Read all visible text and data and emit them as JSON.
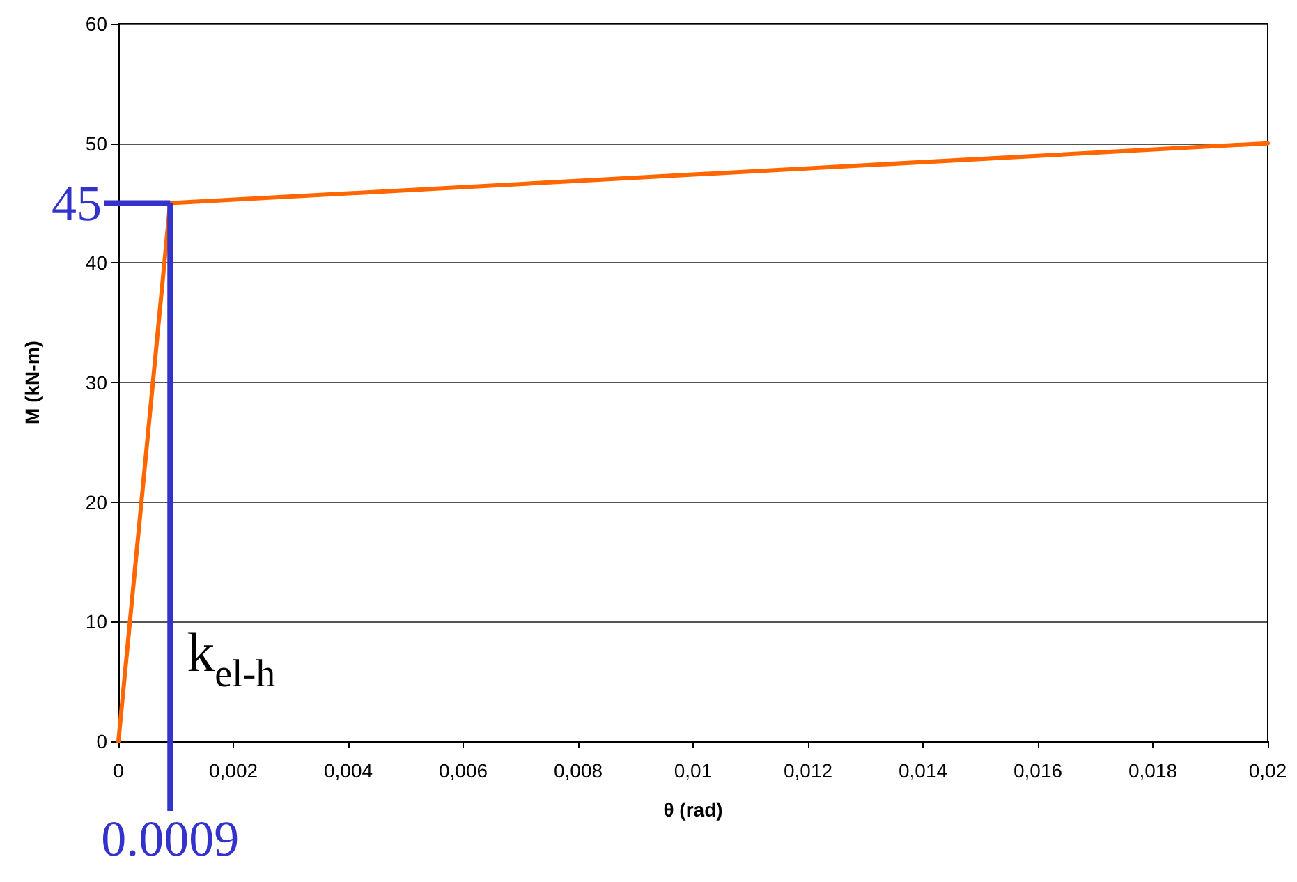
{
  "chart_data": {
    "type": "line",
    "xlabel": "θ (rad)",
    "ylabel": "M (kN-m)",
    "x": [
      0,
      0.0009,
      0.02
    ],
    "series": [
      {
        "color": "#ff6600",
        "values": [
          0,
          45,
          50
        ]
      }
    ],
    "xlim": [
      0,
      0.02
    ],
    "xticks": [
      0,
      {
        "value": 0.002,
        "label": "0,002"
      },
      {
        "value": 0.004,
        "label": "0,004"
      },
      {
        "value": 0.006,
        "label": "0,006"
      },
      {
        "value": 0.008,
        "label": "0,008"
      },
      {
        "value": 0.01,
        "label": "0,01"
      },
      {
        "value": 0.012,
        "label": "0,012"
      },
      {
        "value": 0.014,
        "label": "0,014"
      },
      {
        "value": 0.016,
        "label": "0,016"
      },
      {
        "value": 0.018,
        "label": "0,018"
      },
      {
        "value": 0.02,
        "label": "0,02"
      }
    ],
    "ylim": [
      0,
      60
    ],
    "yticks": [
      0,
      10,
      20,
      30,
      40,
      50,
      60
    ],
    "grid": "y",
    "marker": "none",
    "line_style": "solid",
    "ref_lines": [
      {
        "axis": "x",
        "value": 0.0009,
        "label": "0.0009",
        "color": "#3333cc"
      },
      {
        "axis": "y",
        "value": 45,
        "label": "45",
        "color": "#3333cc"
      }
    ],
    "annotations": [
      "k$_{el-h}$"
    ]
  }
}
